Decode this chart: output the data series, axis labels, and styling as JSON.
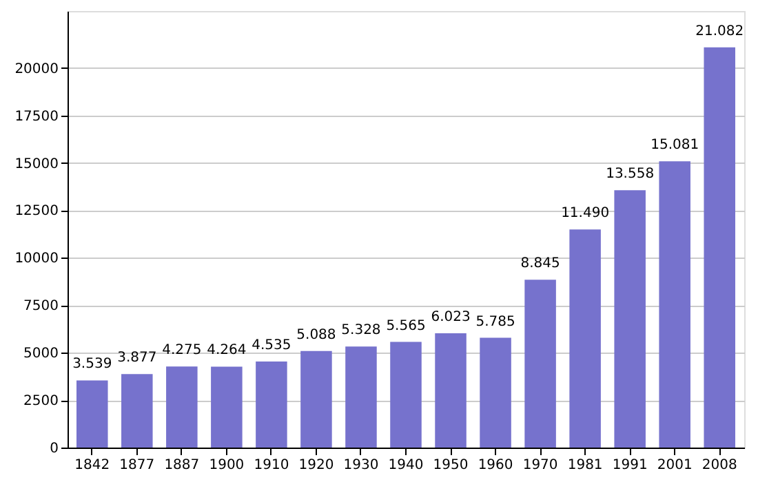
{
  "chart_data": {
    "type": "bar",
    "categories": [
      "1842",
      "1877",
      "1887",
      "1900",
      "1910",
      "1920",
      "1930",
      "1940",
      "1950",
      "1960",
      "1970",
      "1981",
      "1991",
      "2001",
      "2008"
    ],
    "values": [
      3539,
      3877,
      4275,
      4264,
      4535,
      5088,
      5328,
      5565,
      6023,
      5785,
      8845,
      11490,
      13558,
      15081,
      21082
    ],
    "value_labels": [
      "3.539",
      "3.877",
      "4.275",
      "4.264",
      "4.535",
      "5.088",
      "5.328",
      "5.565",
      "6.023",
      "5.785",
      "8.845",
      "11.490",
      "13.558",
      "15.081",
      "21.082"
    ],
    "color": "#7672cd",
    "ylim": [
      0,
      23000
    ],
    "yticks": [
      0,
      2500,
      5000,
      7500,
      10000,
      12500,
      15000,
      17500,
      20000
    ],
    "grid": "y"
  }
}
